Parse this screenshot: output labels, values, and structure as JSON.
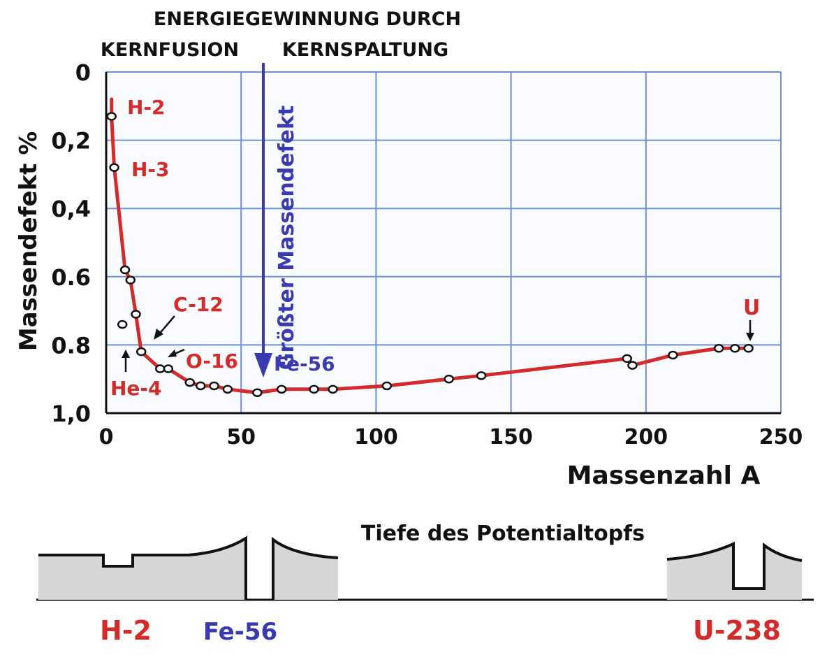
{
  "header": {
    "line1": "ENERGIEGEWINNUNG DURCH",
    "left": "KERNFUSION",
    "right": "KERNSPALTUNG"
  },
  "arrow_label": "Größter Massendefekt",
  "chart_data": {
    "type": "scatter",
    "xlabel": "Massenzahl A",
    "ylabel": "Massendefekt %",
    "xlim": [
      0,
      250
    ],
    "ylim": [
      0,
      1.0
    ],
    "y_inverted": true,
    "grid": true,
    "x_ticks": [
      "0",
      "50",
      "100",
      "150",
      "200",
      "250"
    ],
    "y_ticks": [
      "0",
      "0,2",
      "0,4",
      "0.6",
      "0.8",
      "1,0"
    ],
    "series": [
      {
        "color": "#d42a2a",
        "x": [
          2,
          3,
          7,
          9,
          6,
          11,
          13,
          20,
          23,
          31,
          35,
          40,
          45,
          56,
          65,
          77,
          84,
          104,
          127,
          139,
          193,
          195,
          210,
          227,
          233,
          238
        ],
        "y": [
          0.13,
          0.28,
          0.58,
          0.61,
          0.74,
          0.71,
          0.82,
          0.87,
          0.87,
          0.91,
          0.92,
          0.92,
          0.93,
          0.94,
          0.93,
          0.93,
          0.93,
          0.92,
          0.9,
          0.89,
          0.84,
          0.86,
          0.83,
          0.81,
          0.81,
          0.81
        ]
      }
    ],
    "annotations": [
      {
        "text": "H-2",
        "color": "#d42a2a"
      },
      {
        "text": "H-3",
        "color": "#d42a2a"
      },
      {
        "text": "C-12",
        "color": "#d42a2a"
      },
      {
        "text": "O-16",
        "color": "#d42a2a"
      },
      {
        "text": "He-4",
        "color": "#d42a2a"
      },
      {
        "text": "U",
        "color": "#d42a2a"
      },
      {
        "text": "Fe-56",
        "color": "#3a3ab0"
      }
    ]
  },
  "well_title": "Tiefe des Potentialtopfs",
  "wells": [
    {
      "text": "H-2",
      "color": "#d42a2a"
    },
    {
      "text": "Fe-56",
      "color": "#3a3ab0"
    },
    {
      "text": "U-238",
      "color": "#d42a2a"
    }
  ],
  "colors": {
    "curve": "#d42a2a",
    "grid": "#6f8fd6",
    "arrow": "#3a3ab0",
    "well_fill": "#d6d6d6"
  }
}
